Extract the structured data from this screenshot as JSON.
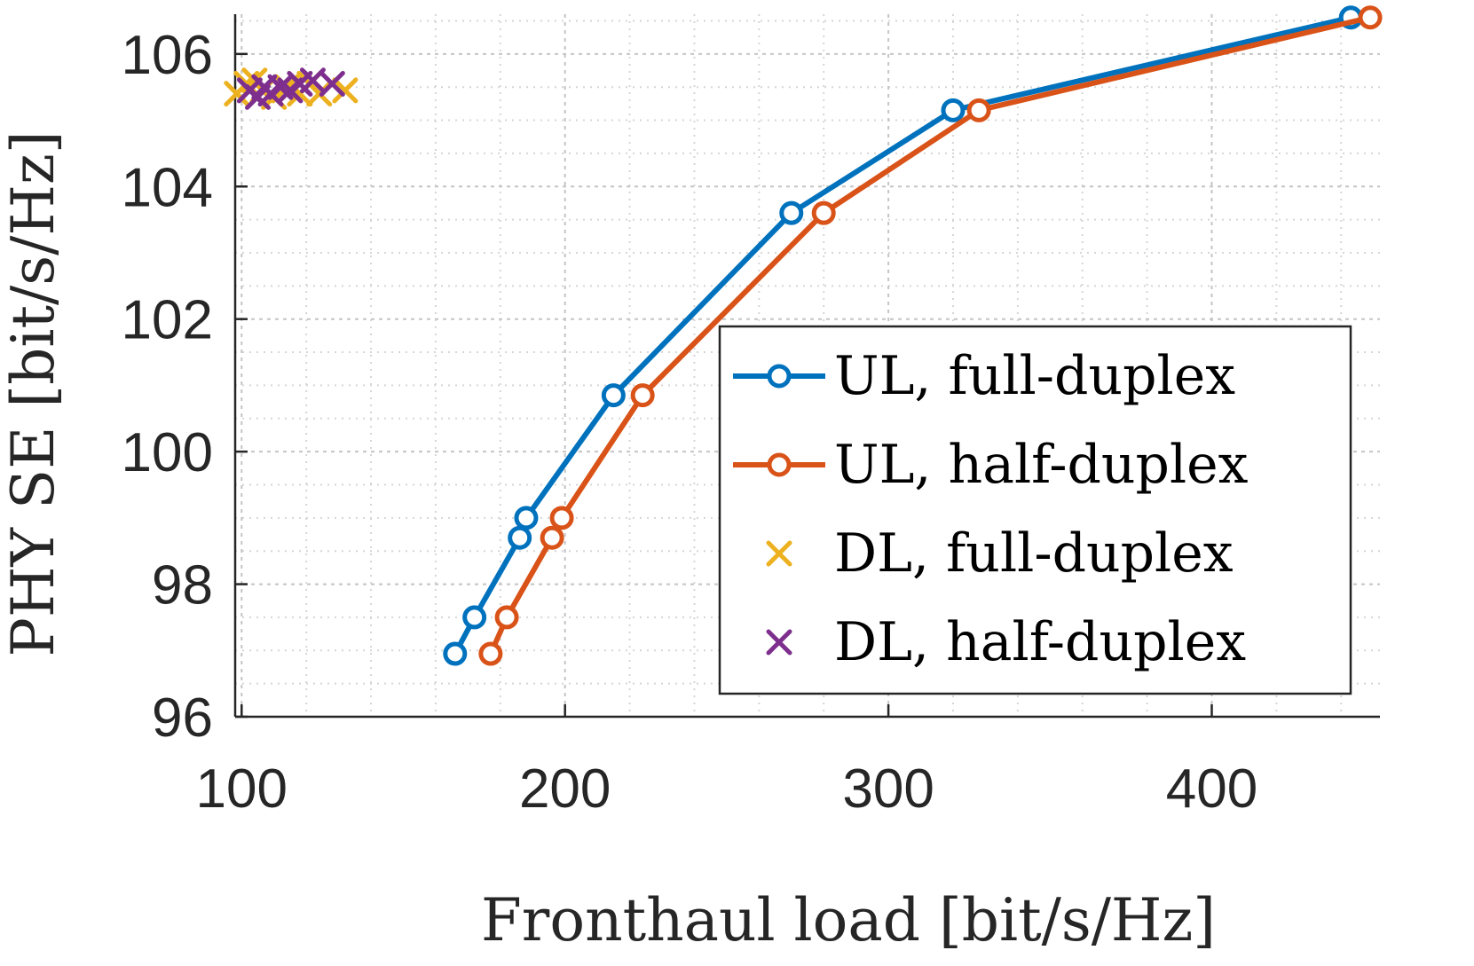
{
  "chart_data": {
    "type": "line",
    "title": "",
    "xlabel": "Fronthaul load [bit/s/Hz]",
    "ylabel": "PHY SE [bit/s/Hz]",
    "xlim": [
      98,
      452
    ],
    "ylim": [
      96,
      106.6
    ],
    "xticks": [
      100,
      200,
      300,
      400
    ],
    "yticks": [
      96,
      98,
      100,
      102,
      104,
      106
    ],
    "grid": true,
    "minor_grid": true,
    "legend_position": "bottom-right",
    "series": [
      {
        "name": "UL, full-duplex",
        "color": "#0072BD",
        "marker": "circle",
        "line": true,
        "x": [
          166,
          172,
          186,
          188,
          215,
          270,
          320,
          443
        ],
        "y": [
          96.95,
          97.5,
          98.7,
          99.0,
          100.85,
          103.6,
          105.15,
          106.55
        ]
      },
      {
        "name": "UL, half-duplex",
        "color": "#D95319",
        "marker": "circle",
        "line": true,
        "x": [
          177,
          182,
          196,
          199,
          224,
          280,
          328,
          449
        ],
        "y": [
          96.95,
          97.5,
          98.7,
          99.0,
          100.85,
          103.6,
          105.15,
          106.55
        ]
      },
      {
        "name": "DL, full-duplex",
        "color": "#EDB120",
        "marker": "x",
        "line": false,
        "x": [
          98.5,
          101.5,
          104,
          106.5,
          110,
          114,
          118,
          121,
          124,
          132
        ],
        "y": [
          105.4,
          105.55,
          105.6,
          105.45,
          105.35,
          105.5,
          105.4,
          105.55,
          105.4,
          105.45
        ]
      },
      {
        "name": "DL, half-duplex",
        "color": "#7E2F8E",
        "marker": "x",
        "line": false,
        "x": [
          102.5,
          105,
          107,
          109,
          112,
          115,
          118,
          122,
          128
        ],
        "y": [
          105.45,
          105.35,
          105.5,
          105.4,
          105.5,
          105.45,
          105.55,
          105.6,
          105.55
        ]
      }
    ]
  }
}
